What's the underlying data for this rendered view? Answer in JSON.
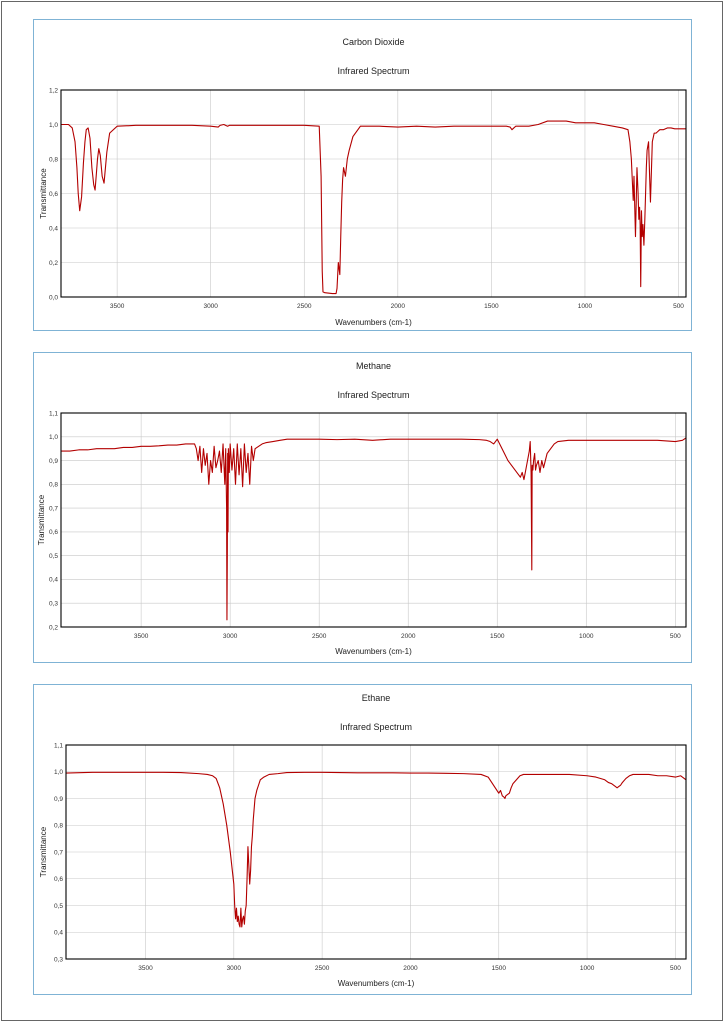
{
  "chart_data": [
    {
      "type": "line",
      "title": "Carbon Dioxide",
      "subtitle": "Infrared Spectrum",
      "xlabel": "Wavenumbers (cm-1)",
      "ylabel": "Transmittance",
      "xlim": [
        3800,
        460
      ],
      "ylim": [
        0,
        1.2
      ],
      "x_ticks": [
        3500,
        3000,
        2500,
        2000,
        1500,
        1000,
        500
      ],
      "y_ticks": [
        0.0,
        0.2,
        0.4,
        0.6,
        0.8,
        1.0,
        1.2
      ],
      "y_tick_labels": [
        "0,0",
        "0,2",
        "0,4",
        "0,6",
        "0,8",
        "1,0",
        "1,2"
      ],
      "grid": true,
      "color": "#b30000",
      "series": [
        {
          "x": [
            3800,
            3760,
            3740,
            3725,
            3715,
            3708,
            3700,
            3690,
            3680,
            3672,
            3665,
            3655,
            3645,
            3635,
            3625,
            3618,
            3612,
            3605,
            3598,
            3590,
            3580,
            3570,
            3555,
            3540,
            3500,
            3400,
            3300,
            3200,
            3100,
            3000,
            2960,
            2950,
            2930,
            2910,
            2900,
            2800,
            2700,
            2600,
            2500,
            2420,
            2410,
            2404,
            2400,
            2390,
            2350,
            2330,
            2325,
            2318,
            2310,
            2305,
            2300,
            2295,
            2290,
            2280,
            2270,
            2260,
            2240,
            2200,
            2100,
            2000,
            1900,
            1800,
            1700,
            1600,
            1500,
            1420,
            1400,
            1390,
            1380,
            1370,
            1340,
            1300,
            1250,
            1200,
            1150,
            1100,
            1050,
            1000,
            950,
            900,
            850,
            800,
            770,
            760,
            752,
            748,
            742,
            738,
            730,
            722,
            716,
            712,
            708,
            705,
            702,
            698,
            694,
            690,
            685,
            680,
            676,
            672,
            668,
            660,
            655,
            650,
            640,
            630,
            620,
            610,
            600,
            580,
            560,
            540,
            520,
            500,
            480,
            460
          ],
          "y": [
            1.0,
            1.0,
            0.98,
            0.9,
            0.75,
            0.6,
            0.5,
            0.58,
            0.78,
            0.9,
            0.97,
            0.98,
            0.92,
            0.75,
            0.65,
            0.62,
            0.7,
            0.8,
            0.86,
            0.82,
            0.7,
            0.66,
            0.84,
            0.95,
            0.99,
            0.995,
            0.995,
            0.995,
            0.995,
            0.99,
            0.985,
            0.995,
            1.0,
            0.99,
            0.995,
            0.995,
            0.995,
            0.995,
            0.995,
            0.99,
            0.7,
            0.15,
            0.03,
            0.025,
            0.02,
            0.02,
            0.05,
            0.2,
            0.13,
            0.35,
            0.55,
            0.68,
            0.75,
            0.7,
            0.8,
            0.85,
            0.93,
            0.99,
            0.99,
            0.985,
            0.99,
            0.985,
            0.99,
            0.99,
            0.99,
            0.99,
            0.985,
            0.97,
            0.98,
            0.99,
            0.99,
            0.99,
            1.0,
            1.02,
            1.02,
            1.02,
            1.01,
            1.01,
            1.01,
            1.0,
            0.99,
            0.98,
            0.97,
            0.9,
            0.8,
            0.7,
            0.56,
            0.7,
            0.35,
            0.75,
            0.6,
            0.45,
            0.52,
            0.42,
            0.06,
            0.5,
            0.35,
            0.42,
            0.3,
            0.45,
            0.6,
            0.75,
            0.85,
            0.9,
            0.72,
            0.55,
            0.9,
            0.95,
            0.95,
            0.96,
            0.97,
            0.97,
            0.98,
            0.98,
            0.975,
            0.975,
            0.975,
            0.975
          ]
        }
      ]
    },
    {
      "type": "line",
      "title": "Methane",
      "subtitle": "Infrared Spectrum",
      "xlabel": "Wavenumbers (cm-1)",
      "ylabel": "Transmittance",
      "xlim": [
        3950,
        440
      ],
      "ylim": [
        0.2,
        1.1
      ],
      "x_ticks": [
        3500,
        3000,
        2500,
        2000,
        1500,
        1000,
        500
      ],
      "y_ticks": [
        0.2,
        0.3,
        0.4,
        0.5,
        0.6,
        0.7,
        0.8,
        0.9,
        1.0,
        1.1
      ],
      "y_tick_labels": [
        "0,2",
        "0,3",
        "0,4",
        "0,5",
        "0,6",
        "0,7",
        "0,8",
        "0,9",
        "1,0",
        "1,1"
      ],
      "grid": true,
      "color": "#b30000",
      "series": [
        {
          "x": [
            3950,
            3900,
            3850,
            3800,
            3750,
            3700,
            3650,
            3600,
            3550,
            3500,
            3450,
            3400,
            3350,
            3300,
            3250,
            3200,
            3190,
            3180,
            3170,
            3160,
            3150,
            3140,
            3130,
            3120,
            3110,
            3100,
            3090,
            3080,
            3070,
            3060,
            3050,
            3040,
            3030,
            3025,
            3020,
            3018,
            3016,
            3014,
            3012,
            3010,
            3005,
            3000,
            2990,
            2980,
            2970,
            2960,
            2950,
            2940,
            2930,
            2920,
            2910,
            2900,
            2890,
            2880,
            2870,
            2860,
            2840,
            2820,
            2800,
            2760,
            2720,
            2680,
            2600,
            2500,
            2400,
            2300,
            2200,
            2100,
            2000,
            1900,
            1800,
            1700,
            1600,
            1560,
            1540,
            1520,
            1500,
            1480,
            1460,
            1440,
            1420,
            1400,
            1380,
            1370,
            1360,
            1350,
            1340,
            1330,
            1320,
            1315,
            1310,
            1306,
            1304,
            1300,
            1296,
            1290,
            1285,
            1280,
            1270,
            1260,
            1250,
            1240,
            1230,
            1220,
            1200,
            1180,
            1160,
            1100,
            1000,
            900,
            800,
            700,
            600,
            500,
            460,
            440
          ],
          "y": [
            0.94,
            0.94,
            0.945,
            0.945,
            0.95,
            0.95,
            0.95,
            0.955,
            0.955,
            0.96,
            0.96,
            0.962,
            0.965,
            0.965,
            0.97,
            0.97,
            0.95,
            0.9,
            0.96,
            0.85,
            0.95,
            0.88,
            0.93,
            0.8,
            0.9,
            0.85,
            0.96,
            0.87,
            0.9,
            0.94,
            0.85,
            0.97,
            0.8,
            0.95,
            0.7,
            0.23,
            0.5,
            0.93,
            0.6,
            0.95,
            0.85,
            0.97,
            0.86,
            0.95,
            0.8,
            0.97,
            0.84,
            0.95,
            0.79,
            0.97,
            0.85,
            0.93,
            0.8,
            0.96,
            0.9,
            0.95,
            0.96,
            0.97,
            0.975,
            0.98,
            0.985,
            0.99,
            0.99,
            0.99,
            0.988,
            0.99,
            0.985,
            0.99,
            0.99,
            0.99,
            0.99,
            0.99,
            0.988,
            0.985,
            0.98,
            0.97,
            0.99,
            0.96,
            0.93,
            0.9,
            0.88,
            0.86,
            0.84,
            0.83,
            0.85,
            0.82,
            0.86,
            0.9,
            0.94,
            0.98,
            0.85,
            0.44,
            0.88,
            0.86,
            0.9,
            0.93,
            0.86,
            0.88,
            0.9,
            0.85,
            0.9,
            0.87,
            0.9,
            0.93,
            0.95,
            0.97,
            0.98,
            0.985,
            0.985,
            0.985,
            0.985,
            0.985,
            0.985,
            0.98,
            0.985,
            0.995
          ]
        }
      ]
    },
    {
      "type": "line",
      "title": "Ethane",
      "subtitle": "Infrared Spectrum",
      "xlabel": "Wavenumbers (cm-1)",
      "ylabel": "Transmittance",
      "xlim": [
        3950,
        440
      ],
      "ylim": [
        0.3,
        1.1
      ],
      "x_ticks": [
        3500,
        3000,
        2500,
        2000,
        1500,
        1000,
        500
      ],
      "y_ticks": [
        0.3,
        0.4,
        0.5,
        0.6,
        0.7,
        0.8,
        0.9,
        1.0,
        1.1
      ],
      "y_tick_labels": [
        "0,3",
        "0,4",
        "0,5",
        "0,6",
        "0,7",
        "0,8",
        "0,9",
        "1,0",
        "1,1"
      ],
      "grid": true,
      "color": "#b30000",
      "series": [
        {
          "x": [
            3950,
            3800,
            3600,
            3400,
            3300,
            3200,
            3150,
            3120,
            3100,
            3080,
            3060,
            3040,
            3020,
            3010,
            3000,
            2995,
            2990,
            2985,
            2980,
            2975,
            2970,
            2965,
            2960,
            2955,
            2950,
            2945,
            2940,
            2935,
            2930,
            2925,
            2920,
            2915,
            2910,
            2905,
            2900,
            2895,
            2890,
            2885,
            2880,
            2870,
            2860,
            2850,
            2830,
            2800,
            2750,
            2700,
            2600,
            2500,
            2400,
            2300,
            2200,
            2100,
            2000,
            1900,
            1800,
            1700,
            1600,
            1560,
            1540,
            1520,
            1500,
            1490,
            1480,
            1470,
            1465,
            1460,
            1450,
            1440,
            1430,
            1420,
            1400,
            1380,
            1360,
            1340,
            1300,
            1200,
            1100,
            1000,
            950,
            900,
            880,
            860,
            840,
            830,
            820,
            810,
            800,
            780,
            760,
            740,
            720,
            700,
            650,
            600,
            550,
            500,
            470,
            440
          ],
          "y": [
            0.995,
            0.998,
            0.998,
            0.998,
            0.997,
            0.993,
            0.99,
            0.985,
            0.975,
            0.94,
            0.88,
            0.8,
            0.7,
            0.64,
            0.58,
            0.5,
            0.45,
            0.49,
            0.44,
            0.46,
            0.43,
            0.42,
            0.49,
            0.42,
            0.45,
            0.46,
            0.43,
            0.48,
            0.5,
            0.6,
            0.72,
            0.65,
            0.58,
            0.63,
            0.72,
            0.76,
            0.82,
            0.86,
            0.9,
            0.93,
            0.95,
            0.97,
            0.98,
            0.99,
            0.993,
            0.997,
            0.998,
            0.998,
            0.997,
            0.996,
            0.996,
            0.996,
            0.995,
            0.995,
            0.994,
            0.993,
            0.99,
            0.98,
            0.96,
            0.94,
            0.92,
            0.93,
            0.91,
            0.905,
            0.9,
            0.91,
            0.915,
            0.92,
            0.94,
            0.955,
            0.97,
            0.985,
            0.99,
            0.99,
            0.99,
            0.99,
            0.99,
            0.985,
            0.98,
            0.97,
            0.96,
            0.955,
            0.945,
            0.94,
            0.945,
            0.95,
            0.96,
            0.975,
            0.985,
            0.99,
            0.99,
            0.99,
            0.99,
            0.985,
            0.985,
            0.98,
            0.985,
            0.97
          ]
        }
      ]
    }
  ]
}
